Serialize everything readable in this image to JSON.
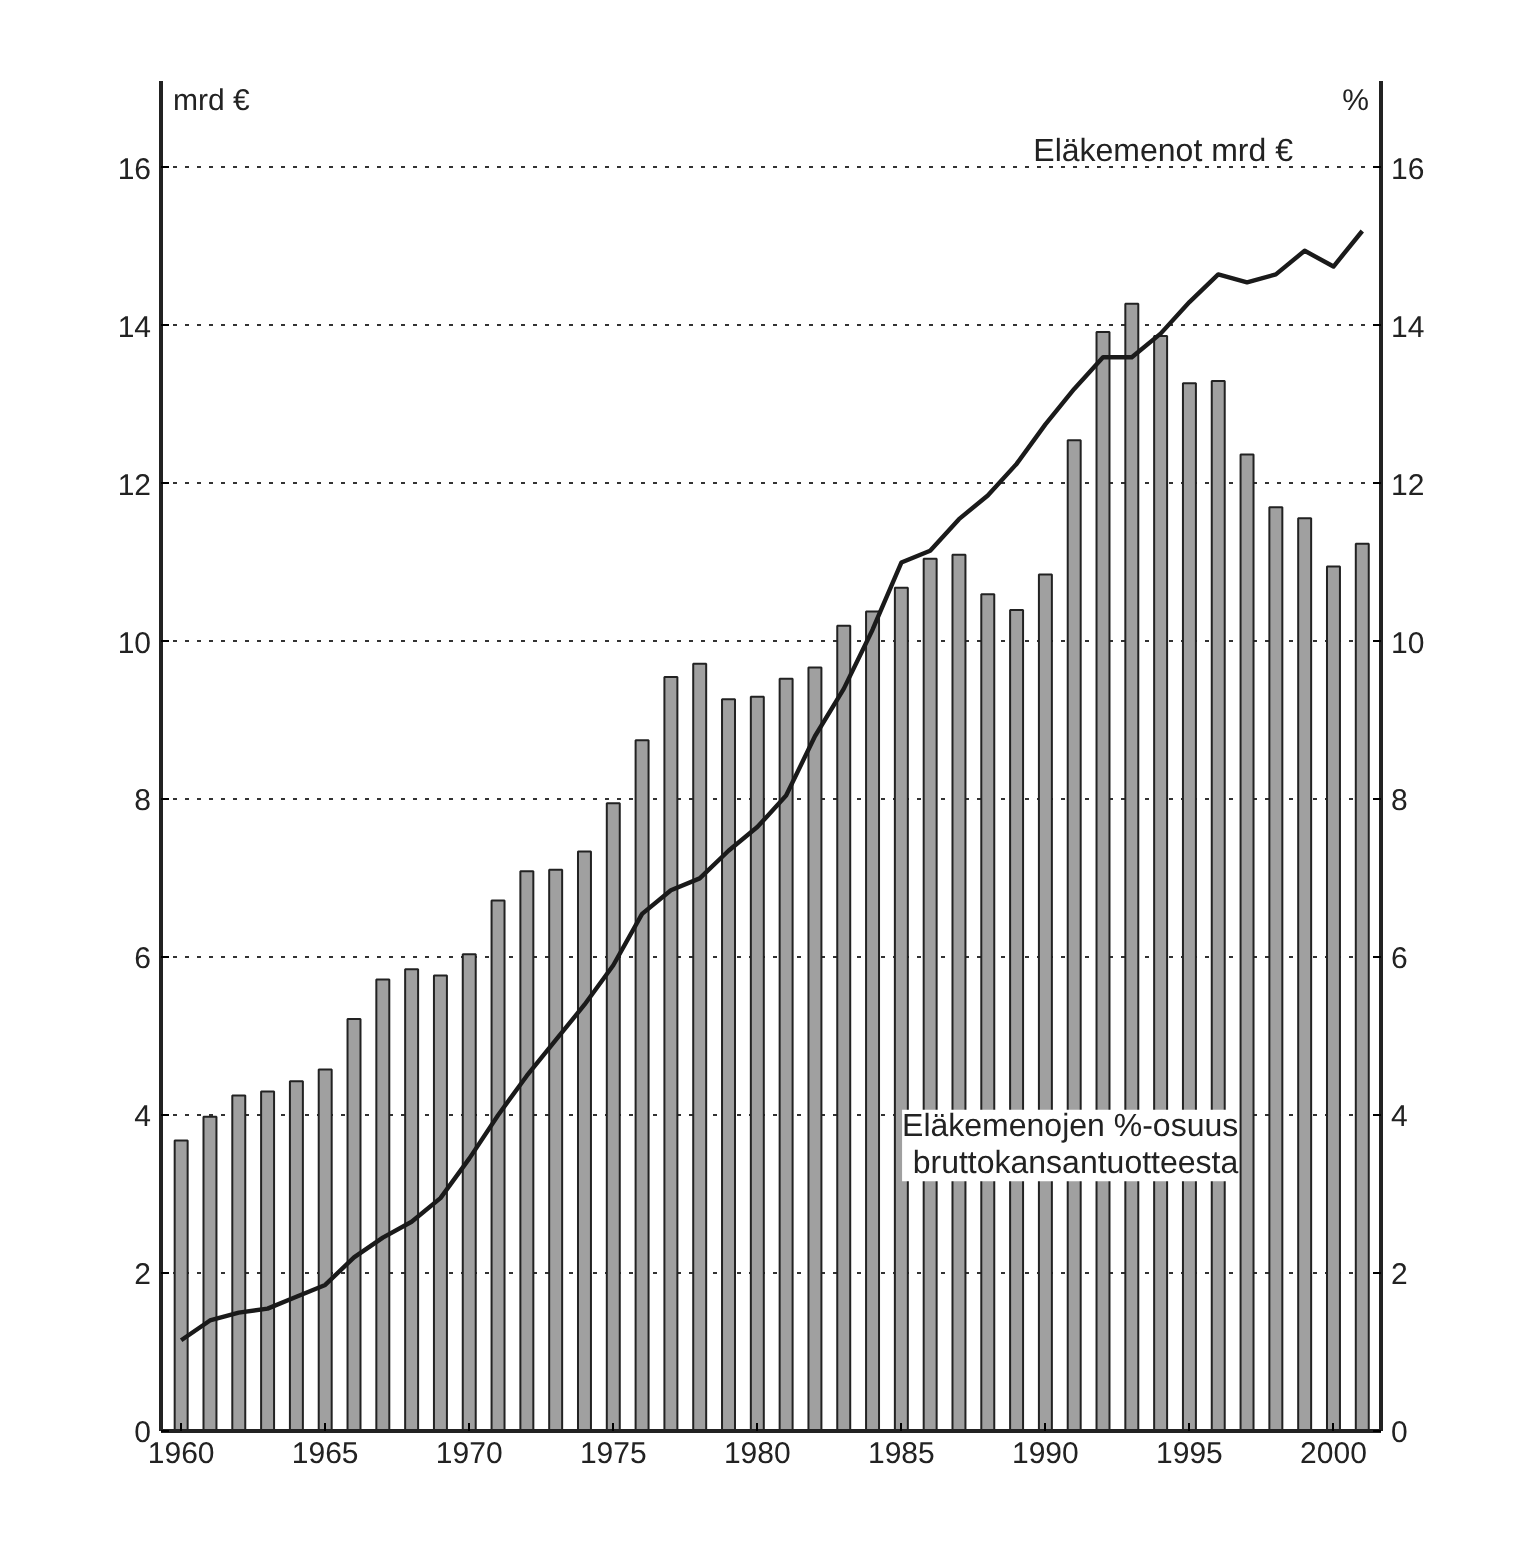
{
  "chart_data": {
    "type": "bar",
    "x": [
      1960,
      1961,
      1962,
      1963,
      1964,
      1965,
      1966,
      1967,
      1968,
      1969,
      1970,
      1971,
      1972,
      1973,
      1974,
      1975,
      1976,
      1977,
      1978,
      1979,
      1980,
      1981,
      1982,
      1983,
      1984,
      1985,
      1986,
      1987,
      1988,
      1989,
      1990,
      1991,
      1992,
      1993,
      1994,
      1995,
      1996,
      1997,
      1998,
      1999,
      2000,
      2001
    ],
    "series": [
      {
        "name": "Eläkemenojen %-osuus bruttokansantuotteesta",
        "axis": "y2",
        "color": "#a0a0a0",
        "values": [
          3.68,
          3.98,
          4.25,
          4.3,
          4.43,
          4.58,
          5.22,
          5.72,
          5.85,
          5.77,
          6.04,
          6.72,
          7.09,
          7.11,
          7.34,
          7.95,
          8.75,
          9.55,
          9.72,
          9.27,
          9.3,
          9.53,
          9.67,
          10.2,
          10.38,
          10.68,
          11.05,
          11.1,
          10.6,
          10.4,
          10.85,
          12.55,
          13.92,
          14.28,
          13.87,
          13.27,
          13.3,
          12.37,
          11.7,
          11.56,
          10.95,
          11.24
        ]
      },
      {
        "name": "Eläkemenot mrd €",
        "type": "line",
        "color": "#1a1a1a",
        "values": [
          1.15,
          1.4,
          1.5,
          1.55,
          1.7,
          1.85,
          2.2,
          2.45,
          2.65,
          2.95,
          3.45,
          4.0,
          4.5,
          4.95,
          5.4,
          5.9,
          6.55,
          6.85,
          7.0,
          7.35,
          7.65,
          8.05,
          8.8,
          9.4,
          10.15,
          11.0,
          11.15,
          11.55,
          11.85,
          12.25,
          12.75,
          13.2,
          13.6,
          13.6,
          13.9,
          14.3,
          14.65,
          14.55,
          14.65,
          14.95,
          14.75,
          15.2
        ]
      }
    ],
    "ylabel": "mrd €",
    "y2label": "%",
    "xlim": [
      1959.3,
      2001.65
    ],
    "xticks": [
      1960,
      1965,
      1970,
      1975,
      1980,
      1985,
      1990,
      1995,
      2000
    ],
    "ylim": [
      0,
      17.1
    ],
    "yticks": [
      0,
      2,
      4,
      6,
      8,
      10,
      12,
      14,
      16
    ],
    "y2lim": [
      0,
      17.1
    ],
    "y2ticks": [
      0,
      2,
      4,
      6,
      8,
      10,
      12,
      14,
      16
    ],
    "grid": "y",
    "marker": "none",
    "line_style": "solid"
  }
}
